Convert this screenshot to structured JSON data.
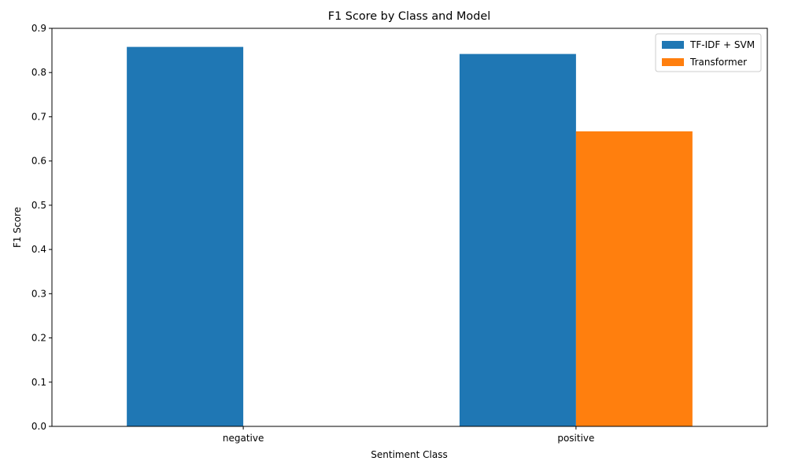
{
  "chart_data": {
    "type": "bar",
    "title": "F1 Score by Class and Model",
    "xlabel": "Sentiment Class",
    "ylabel": "F1 Score",
    "categories": [
      "negative",
      "positive"
    ],
    "series": [
      {
        "name": "TF-IDF + SVM",
        "color": "#1f77b4",
        "values": [
          0.858,
          0.842
        ]
      },
      {
        "name": "Transformer",
        "color": "#ff7f0e",
        "values": [
          0.0,
          0.667
        ]
      }
    ],
    "ylim": [
      0,
      0.9
    ],
    "yticks": [
      "0.0",
      "0.1",
      "0.2",
      "0.3",
      "0.4",
      "0.5",
      "0.6",
      "0.7",
      "0.8",
      "0.9"
    ],
    "grid": false,
    "legend_position": "top-right"
  }
}
